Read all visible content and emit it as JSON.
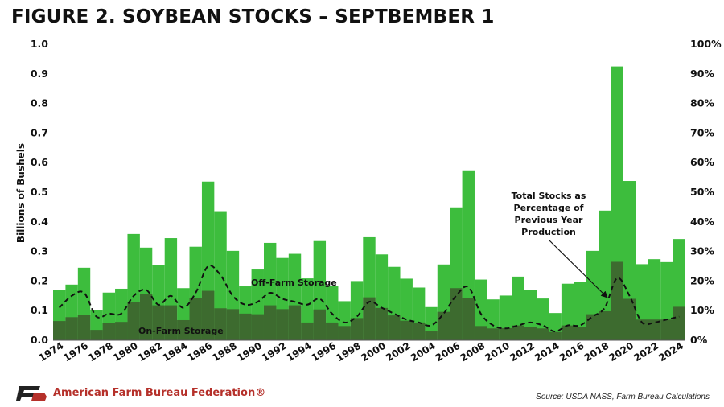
{
  "title": "FIGURE 2. SOYBEAN STOCKS – SEPTBEMBER 1",
  "footer": {
    "organization": "American Farm Bureau Federation®",
    "source": "Source: USDA NASS, Farm Bureau Calculations"
  },
  "colors": {
    "total_bar": "#3dbd3d",
    "on_farm_bar": "#3d6b2f",
    "line": "#111111",
    "brand_red": "#b5302a",
    "logo_dark": "#222222"
  },
  "chart_data": {
    "type": "bar",
    "title": "FIGURE 2. SOYBEAN STOCKS – SEPTBEMBER 1",
    "ylabel": "Billions of Bushels",
    "ylim": [
      0,
      1.0
    ],
    "y2lim": [
      0,
      100
    ],
    "y_ticks": [
      "0.0",
      "0.1",
      "0.2",
      "0.3",
      "0.4",
      "0.5",
      "0.6",
      "0.7",
      "0.8",
      "0.9",
      "1.0"
    ],
    "y2_ticks": [
      "0%",
      "10%",
      "20%",
      "30%",
      "40%",
      "50%",
      "60%",
      "70%",
      "80%",
      "90%",
      "100%"
    ],
    "x_tick_labels": [
      "1974",
      "1976",
      "1978",
      "1980",
      "1982",
      "1984",
      "1986",
      "1988",
      "1990",
      "1992",
      "1994",
      "1996",
      "1998",
      "2000",
      "2002",
      "2004",
      "2006",
      "2008",
      "2010",
      "2012",
      "2014",
      "2016",
      "2018",
      "2020",
      "2022",
      "2024"
    ],
    "categories": [
      1974,
      1975,
      1976,
      1977,
      1978,
      1979,
      1980,
      1981,
      1982,
      1983,
      1984,
      1985,
      1986,
      1987,
      1988,
      1989,
      1990,
      1991,
      1992,
      1993,
      1994,
      1995,
      1996,
      1997,
      1998,
      1999,
      2000,
      2001,
      2002,
      2003,
      2004,
      2005,
      2006,
      2007,
      2008,
      2009,
      2010,
      2011,
      2012,
      2013,
      2014,
      2015,
      2016,
      2017,
      2018,
      2019,
      2020,
      2021,
      2022,
      2023,
      2024
    ],
    "series": [
      {
        "name": "Off-Farm Storage",
        "type": "bar",
        "values": [
          0.171,
          0.188,
          0.245,
          0.103,
          0.161,
          0.174,
          0.359,
          0.313,
          0.255,
          0.345,
          0.176,
          0.316,
          0.536,
          0.436,
          0.302,
          0.182,
          0.239,
          0.329,
          0.278,
          0.292,
          0.209,
          0.335,
          0.183,
          0.132,
          0.2,
          0.348,
          0.29,
          0.248,
          0.208,
          0.178,
          0.112,
          0.256,
          0.449,
          0.574,
          0.205,
          0.138,
          0.151,
          0.215,
          0.169,
          0.141,
          0.092,
          0.191,
          0.197,
          0.302,
          0.438,
          0.925,
          0.538,
          0.257,
          0.274,
          0.264,
          0.342
        ]
      },
      {
        "name": "On-Farm Storage",
        "type": "bar",
        "values": [
          0.065,
          0.078,
          0.085,
          0.035,
          0.058,
          0.062,
          0.128,
          0.155,
          0.118,
          0.118,
          0.068,
          0.142,
          0.167,
          0.108,
          0.105,
          0.09,
          0.088,
          0.118,
          0.105,
          0.118,
          0.06,
          0.104,
          0.06,
          0.048,
          0.075,
          0.145,
          0.109,
          0.084,
          0.066,
          0.06,
          0.03,
          0.096,
          0.176,
          0.144,
          0.048,
          0.04,
          0.041,
          0.05,
          0.045,
          0.04,
          0.028,
          0.05,
          0.045,
          0.088,
          0.098,
          0.265,
          0.14,
          0.07,
          0.07,
          0.07,
          0.113
        ]
      },
      {
        "name": "Total Stocks as Percentage of Previous Year Production",
        "type": "line",
        "style": "dashed",
        "axis": "right",
        "values": [
          11,
          15,
          16,
          8,
          9,
          9,
          15,
          17,
          12,
          15,
          11,
          16,
          25,
          22,
          15,
          12,
          13,
          16,
          14,
          13,
          12,
          14,
          9,
          6,
          8,
          13,
          11,
          9,
          7,
          6,
          5,
          9,
          15,
          18,
          9,
          5,
          4,
          5,
          6,
          5,
          3,
          5,
          5,
          8,
          11,
          21,
          15,
          6,
          6,
          7,
          8
        ]
      }
    ],
    "annotations": {
      "off_farm_label": "Off-Farm Storage",
      "on_farm_label": "On-Farm Storage",
      "line_label": [
        "Total Stocks as",
        "Percentage of",
        "Previous Year",
        "Production"
      ]
    },
    "grid": false,
    "legend": "none (inline labels)"
  }
}
